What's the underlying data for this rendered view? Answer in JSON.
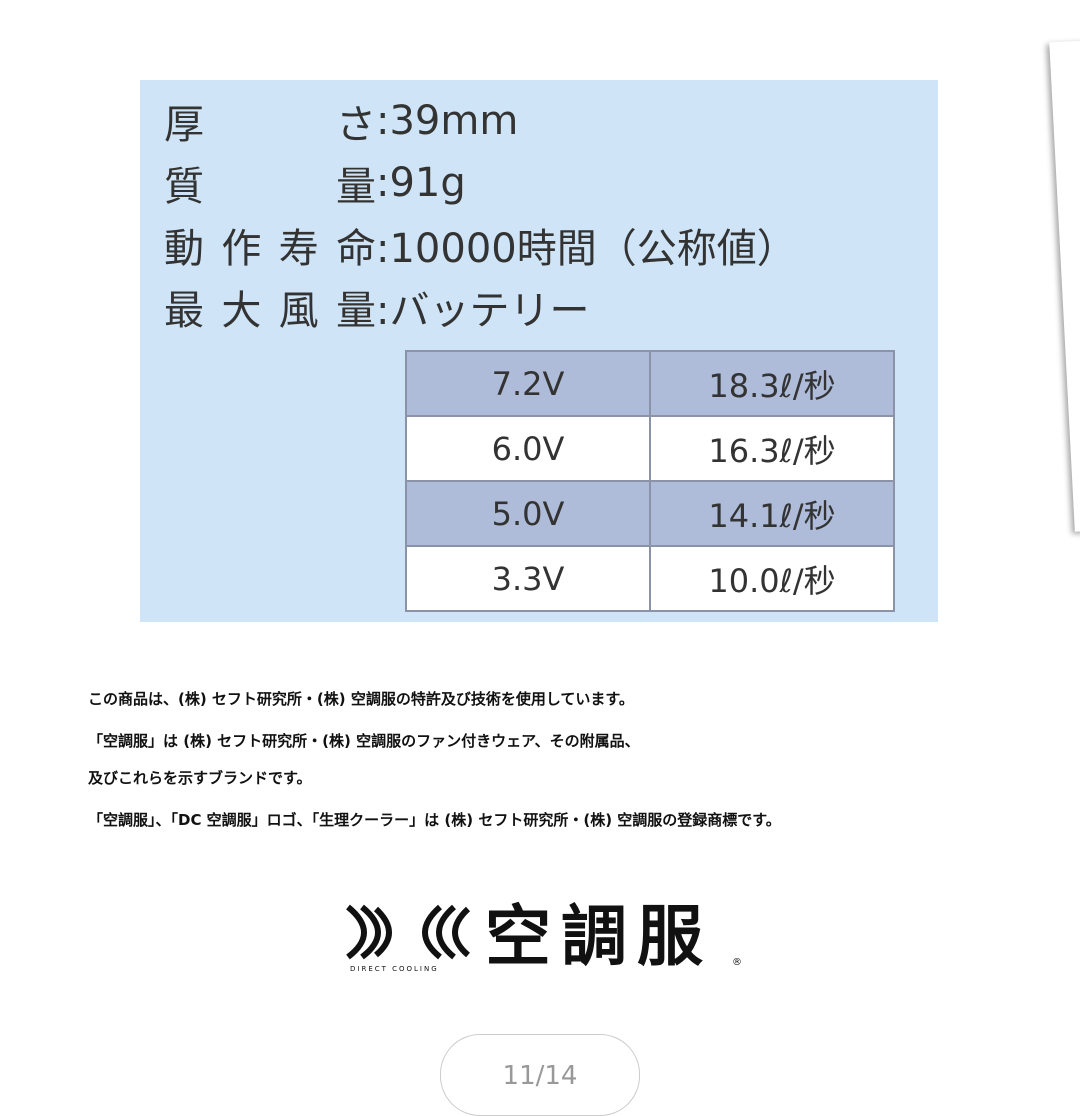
{
  "specs": [
    {
      "label": "厚さ",
      "value": ":39mm"
    },
    {
      "label": "質量",
      "value": ":91g"
    },
    {
      "label": "動作寿命",
      "value": ":10000時間（公称値）"
    },
    {
      "label": "最大風量",
      "value": ":バッテリー"
    }
  ],
  "airflow_table": {
    "rows": [
      [
        "7.2V",
        "18.3ℓ/秒"
      ],
      [
        "6.0V",
        "16.3ℓ/秒"
      ],
      [
        "5.0V",
        "14.1ℓ/秒"
      ],
      [
        "3.3V",
        "10.0ℓ/秒"
      ]
    ]
  },
  "notes": [
    "この商品は、(株) セフト研究所・(株) 空調服の特許及び技術を使用しています。",
    "「空調服」は (株) セフト研究所・(株) 空調服のファン付きウェア、その附属品、",
    "及びこれらを示すブランドです。",
    "「空調服」、「DC 空調服」ロゴ、「生理クーラー」は (株) セフト研究所・(株) 空調服の登録商標です。"
  ],
  "logo": {
    "text": "空調服",
    "subtext": "DIRECT COOLING",
    "mark": "®"
  },
  "pager": "11/14"
}
